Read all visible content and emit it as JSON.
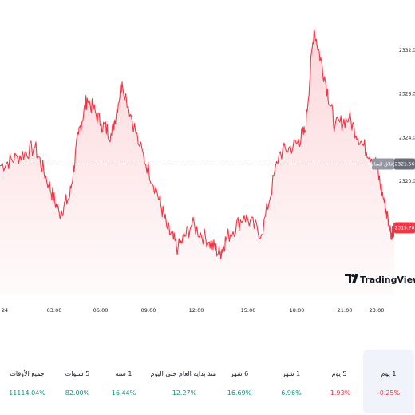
{
  "chart_data": {
    "type": "area",
    "symbol_watermark": "TradingView",
    "x_ticks": [
      "24",
      "03:00",
      "06:00",
      "09:00",
      "12:00",
      "15:00",
      "18:00",
      "21:00",
      "23:00"
    ],
    "y_ticks": [
      2320.0,
      2324.0,
      2328.0,
      2332.0
    ],
    "ylim": [
      2309.5,
      2334.8
    ],
    "line_color": "#f23645",
    "fill_color": "#f23645",
    "prev_close": {
      "label": "الإغلاق السابق",
      "value": 2321.56,
      "tag_text": "2321.56"
    },
    "last_price": {
      "value": 2315.7,
      "tag_text": "2315.70"
    },
    "grid": false,
    "x": [
      0.0,
      1.0,
      2.0,
      2.8,
      3.4,
      4.0,
      4.5,
      5.0,
      5.8,
      6.4,
      7.0,
      8.0,
      9.0,
      9.6,
      10.2,
      11.0,
      12.0,
      12.6,
      13.0,
      14.0,
      15.0,
      16.0,
      17.0,
      17.5,
      18.0,
      18.6,
      19.2,
      20.0,
      20.8,
      21.5,
      22.0,
      22.4,
      22.6
    ],
    "values": [
      2321.4,
      2322.2,
      2323.1,
      2319.7,
      2317.0,
      2318.6,
      2324.3,
      2327.6,
      2325.3,
      2324.2,
      2329.1,
      2323.2,
      2319.0,
      2315.6,
      2313.8,
      2316.0,
      2314.4,
      2313.3,
      2314.8,
      2316.8,
      2315.1,
      2322.5,
      2323.4,
      2324.6,
      2334.0,
      2329.6,
      2325.0,
      2325.8,
      2323.3,
      2321.9,
      2318.3,
      2315.3,
      2315.7
    ],
    "periods": [
      {
        "label": "1 يوم",
        "value": "-0.25%",
        "trend": "neg"
      },
      {
        "label": "5 يوم",
        "value": "-1.93%",
        "trend": "neg"
      },
      {
        "label": "1 شهر",
        "value": "6.96%",
        "trend": "pos"
      },
      {
        "label": "6 شهر",
        "value": "16.69%",
        "trend": "pos"
      },
      {
        "label": "منذ بداية العام حتى اليوم",
        "value": "12.27%",
        "trend": "pos"
      },
      {
        "label": "1 سنة",
        "value": "16.44%",
        "trend": "pos"
      },
      {
        "label": "5 سنوات",
        "value": "82.00%",
        "trend": "pos"
      },
      {
        "label": "جميع الأوقات",
        "value": "11114.04%",
        "trend": "pos"
      }
    ]
  }
}
